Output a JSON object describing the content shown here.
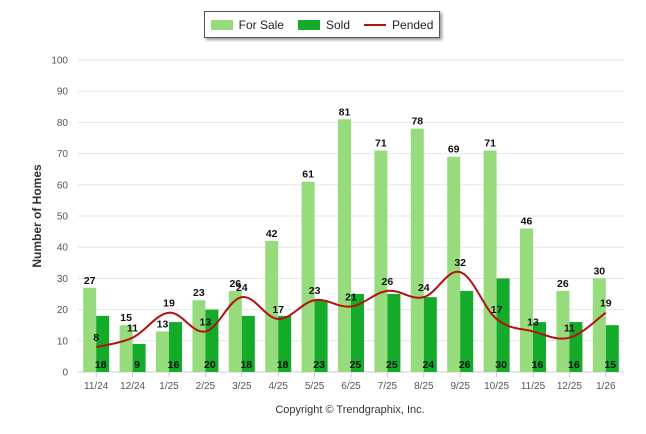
{
  "chart_data": {
    "type": "bar",
    "categories": [
      "11/24",
      "12/24",
      "1/25",
      "2/25",
      "3/25",
      "4/25",
      "5/25",
      "6/25",
      "7/25",
      "8/25",
      "9/25",
      "10/25",
      "11/25",
      "12/25",
      "1/26"
    ],
    "series": [
      {
        "name": "For Sale",
        "type": "bar",
        "color": "#96dc7c",
        "values": [
          27,
          15,
          13,
          23,
          26,
          42,
          61,
          81,
          71,
          78,
          69,
          71,
          46,
          26,
          30
        ]
      },
      {
        "name": "Sold",
        "type": "bar",
        "color": "#14aa2a",
        "values": [
          18,
          9,
          16,
          20,
          18,
          18,
          23,
          25,
          25,
          24,
          26,
          30,
          16,
          16,
          15
        ]
      },
      {
        "name": "Pended",
        "type": "line",
        "color": "#b80f0f",
        "values": [
          8,
          11,
          19,
          13,
          24,
          17,
          23,
          21,
          26,
          24,
          32,
          17,
          13,
          11,
          19
        ]
      }
    ],
    "ylabel": "Number of Homes",
    "xlabel": "",
    "ylim": [
      0,
      100
    ],
    "yticks": [
      0,
      10,
      20,
      30,
      40,
      50,
      60,
      70,
      80,
      90,
      100
    ],
    "grid": true,
    "legend": "top-center",
    "footer": "Copyright © Trendgraphix, Inc."
  }
}
